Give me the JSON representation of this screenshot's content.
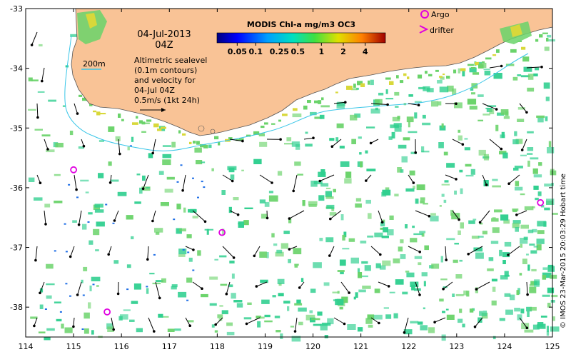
{
  "map": {
    "date_label": "04-Jul-2013",
    "time_label": "04Z",
    "contour_label": "200m",
    "sealevel_lines": [
      "Altimetric sealevel",
      "(0.1m contours)",
      "and velocity for",
      "04-Jul 04Z"
    ],
    "velocity_scale_label": "0.5m/s (1kt 24h)",
    "colorbar_title": "MODIS Chl-a mg/m3 OC3",
    "colorbar_ticks": [
      "0.05",
      "0.1",
      "0.25",
      "0.5",
      "1",
      "2",
      "4"
    ],
    "legend": {
      "argo_label": "Argo",
      "drifter_label": "drifter"
    },
    "credit": "© IMOS 23-Mar-2015 20:03:29 Hobart time",
    "x_ticks": [
      "114",
      "115",
      "116",
      "117",
      "118",
      "119",
      "120",
      "121",
      "122",
      "123",
      "124",
      "125"
    ],
    "y_ticks": [
      "-33",
      "-34",
      "-35",
      "-36",
      "-37",
      "-38"
    ],
    "lon_range": [
      114,
      125
    ],
    "lat_range": [
      -38.5,
      -33
    ],
    "argo_floats": [
      {
        "lon": 115.0,
        "lat": -35.7
      },
      {
        "lon": 118.1,
        "lat": -36.75
      },
      {
        "lon": 115.7,
        "lat": -38.08
      },
      {
        "lon": 124.75,
        "lat": -36.25
      }
    ],
    "colors": {
      "land": "#f9c396",
      "argo": "#e000e0",
      "drifter": "#e000e0",
      "contour": "#39c6e8",
      "chl_low": "#2fcf8f",
      "chl_mid": "#6ad36a",
      "chl_high": "#d8d83a"
    }
  }
}
